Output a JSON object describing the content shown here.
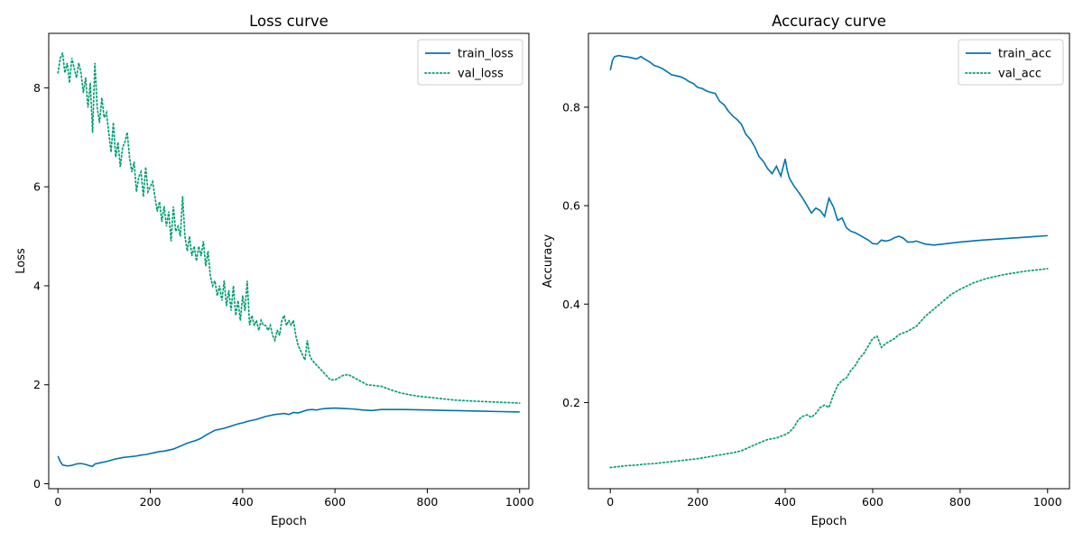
{
  "chart_data": [
    {
      "type": "line",
      "title": "Loss curve",
      "xlabel": "Epoch",
      "ylabel": "Loss",
      "xlim": [
        -20,
        1020
      ],
      "ylim": [
        -0.1,
        9.1
      ],
      "xticks": [
        0,
        200,
        400,
        600,
        800,
        1000
      ],
      "yticks": [
        0,
        2,
        4,
        6,
        8
      ],
      "legend_position": "top-right",
      "series": [
        {
          "name": "train_loss",
          "style": "solid",
          "color": "#0072B2",
          "x": [
            0,
            5,
            10,
            20,
            30,
            40,
            50,
            60,
            70,
            75,
            80,
            90,
            100,
            110,
            120,
            130,
            140,
            150,
            160,
            170,
            180,
            190,
            200,
            210,
            220,
            230,
            240,
            250,
            260,
            270,
            280,
            290,
            300,
            310,
            320,
            330,
            340,
            350,
            360,
            370,
            380,
            390,
            400,
            410,
            420,
            430,
            440,
            450,
            460,
            470,
            480,
            490,
            500,
            510,
            520,
            530,
            540,
            550,
            560,
            570,
            580,
            600,
            620,
            640,
            660,
            680,
            700,
            720,
            750,
            800,
            850,
            900,
            950,
            1000
          ],
          "y": [
            0.56,
            0.45,
            0.38,
            0.36,
            0.37,
            0.4,
            0.41,
            0.39,
            0.36,
            0.35,
            0.4,
            0.42,
            0.44,
            0.46,
            0.49,
            0.51,
            0.53,
            0.54,
            0.55,
            0.56,
            0.58,
            0.59,
            0.61,
            0.63,
            0.65,
            0.66,
            0.68,
            0.7,
            0.74,
            0.78,
            0.82,
            0.85,
            0.88,
            0.92,
            0.98,
            1.03,
            1.08,
            1.1,
            1.12,
            1.15,
            1.18,
            1.21,
            1.23,
            1.26,
            1.28,
            1.3,
            1.33,
            1.36,
            1.38,
            1.4,
            1.41,
            1.42,
            1.4,
            1.44,
            1.43,
            1.46,
            1.49,
            1.5,
            1.49,
            1.51,
            1.52,
            1.53,
            1.52,
            1.51,
            1.49,
            1.48,
            1.5,
            1.5,
            1.5,
            1.49,
            1.48,
            1.47,
            1.46,
            1.45
          ]
        },
        {
          "name": "val_loss",
          "style": "dotted",
          "color": "#009E73",
          "x": [
            0,
            5,
            10,
            15,
            20,
            25,
            30,
            35,
            40,
            45,
            50,
            55,
            60,
            65,
            70,
            75,
            80,
            85,
            90,
            95,
            100,
            105,
            110,
            115,
            120,
            125,
            130,
            135,
            140,
            145,
            150,
            155,
            160,
            165,
            170,
            175,
            180,
            185,
            190,
            195,
            200,
            205,
            210,
            215,
            220,
            225,
            230,
            235,
            240,
            245,
            250,
            255,
            260,
            265,
            270,
            275,
            280,
            285,
            290,
            295,
            300,
            305,
            310,
            315,
            320,
            325,
            330,
            335,
            340,
            345,
            350,
            355,
            360,
            365,
            370,
            375,
            380,
            385,
            390,
            395,
            400,
            405,
            410,
            415,
            420,
            425,
            430,
            435,
            440,
            445,
            450,
            455,
            460,
            465,
            470,
            475,
            480,
            485,
            490,
            495,
            500,
            505,
            510,
            515,
            520,
            525,
            530,
            535,
            540,
            545,
            550,
            560,
            570,
            580,
            590,
            600,
            610,
            620,
            630,
            640,
            650,
            660,
            670,
            680,
            690,
            700,
            720,
            740,
            760,
            780,
            800,
            830,
            860,
            900,
            950,
            1000
          ],
          "y": [
            8.3,
            8.6,
            8.7,
            8.3,
            8.5,
            8.1,
            8.6,
            8.4,
            8.2,
            8.5,
            8.3,
            7.9,
            8.2,
            7.6,
            8.1,
            7.1,
            8.5,
            7.6,
            7.3,
            7.8,
            7.4,
            7.5,
            7.1,
            6.7,
            7.3,
            6.6,
            6.9,
            6.4,
            6.8,
            6.9,
            7.1,
            6.6,
            6.3,
            6.5,
            5.9,
            6.2,
            6.3,
            5.8,
            6.4,
            5.9,
            6.0,
            6.1,
            5.8,
            5.5,
            5.7,
            5.3,
            5.6,
            5.2,
            5.5,
            4.9,
            5.6,
            5.1,
            5.2,
            5.0,
            5.8,
            5.0,
            4.7,
            5.0,
            4.6,
            4.8,
            4.5,
            4.8,
            4.6,
            4.9,
            4.4,
            4.7,
            4.2,
            4.0,
            4.1,
            3.8,
            4.0,
            3.7,
            4.1,
            3.6,
            3.9,
            3.5,
            4.0,
            3.4,
            3.7,
            3.3,
            3.8,
            3.5,
            4.1,
            3.2,
            3.4,
            3.2,
            3.3,
            3.1,
            3.3,
            3.2,
            3.2,
            3.1,
            3.2,
            3.0,
            2.9,
            3.1,
            3.0,
            3.3,
            3.4,
            3.2,
            3.3,
            3.2,
            3.3,
            3.0,
            2.8,
            2.7,
            2.6,
            2.5,
            2.9,
            2.6,
            2.5,
            2.4,
            2.3,
            2.2,
            2.1,
            2.1,
            2.15,
            2.2,
            2.2,
            2.15,
            2.1,
            2.05,
            2.0,
            1.99,
            1.98,
            1.97,
            1.9,
            1.84,
            1.8,
            1.77,
            1.75,
            1.72,
            1.69,
            1.67,
            1.65,
            1.63
          ]
        }
      ]
    },
    {
      "type": "line",
      "title": "Accuracy curve",
      "xlabel": "Epoch",
      "ylabel": "Accuracy",
      "xlim": [
        -50,
        1050
      ],
      "ylim": [
        0.025,
        0.95
      ],
      "xticks": [
        0,
        200,
        400,
        600,
        800,
        1000
      ],
      "yticks": [
        0.2,
        0.4,
        0.6,
        0.8
      ],
      "legend_position": "top-right",
      "series": [
        {
          "name": "train_acc",
          "style": "solid",
          "color": "#0072B2",
          "x": [
            0,
            5,
            10,
            20,
            30,
            40,
            50,
            60,
            70,
            80,
            90,
            100,
            110,
            120,
            130,
            140,
            150,
            160,
            170,
            180,
            190,
            200,
            210,
            220,
            230,
            240,
            250,
            260,
            270,
            280,
            290,
            300,
            310,
            320,
            330,
            340,
            350,
            360,
            370,
            380,
            390,
            400,
            405,
            410,
            420,
            430,
            440,
            450,
            460,
            470,
            480,
            490,
            500,
            510,
            520,
            530,
            540,
            550,
            560,
            570,
            580,
            590,
            600,
            610,
            620,
            630,
            640,
            650,
            660,
            670,
            680,
            690,
            700,
            720,
            740,
            760,
            800,
            850,
            900,
            950,
            1000
          ],
          "y": [
            0.875,
            0.895,
            0.903,
            0.905,
            0.903,
            0.902,
            0.9,
            0.898,
            0.903,
            0.897,
            0.892,
            0.885,
            0.882,
            0.878,
            0.872,
            0.866,
            0.864,
            0.862,
            0.858,
            0.852,
            0.848,
            0.84,
            0.838,
            0.833,
            0.83,
            0.828,
            0.812,
            0.805,
            0.792,
            0.782,
            0.775,
            0.765,
            0.745,
            0.735,
            0.72,
            0.7,
            0.69,
            0.675,
            0.665,
            0.68,
            0.66,
            0.695,
            0.67,
            0.655,
            0.64,
            0.628,
            0.615,
            0.6,
            0.585,
            0.595,
            0.59,
            0.578,
            0.615,
            0.598,
            0.57,
            0.575,
            0.555,
            0.548,
            0.545,
            0.54,
            0.535,
            0.53,
            0.523,
            0.522,
            0.53,
            0.528,
            0.53,
            0.535,
            0.538,
            0.534,
            0.526,
            0.526,
            0.528,
            0.522,
            0.52,
            0.522,
            0.526,
            0.53,
            0.533,
            0.536,
            0.539
          ]
        },
        {
          "name": "val_acc",
          "style": "dotted",
          "color": "#009E73",
          "x": [
            0,
            20,
            40,
            60,
            80,
            100,
            120,
            140,
            160,
            180,
            200,
            220,
            240,
            260,
            280,
            300,
            320,
            340,
            360,
            380,
            400,
            410,
            420,
            430,
            440,
            450,
            460,
            470,
            480,
            490,
            500,
            510,
            520,
            530,
            540,
            550,
            560,
            570,
            580,
            590,
            600,
            610,
            620,
            630,
            640,
            650,
            660,
            680,
            700,
            720,
            740,
            760,
            780,
            800,
            830,
            860,
            900,
            950,
            1000
          ],
          "y": [
            0.068,
            0.07,
            0.072,
            0.073,
            0.075,
            0.076,
            0.078,
            0.08,
            0.082,
            0.084,
            0.086,
            0.089,
            0.092,
            0.095,
            0.098,
            0.102,
            0.11,
            0.118,
            0.125,
            0.128,
            0.135,
            0.14,
            0.15,
            0.165,
            0.172,
            0.175,
            0.17,
            0.178,
            0.19,
            0.195,
            0.19,
            0.215,
            0.235,
            0.245,
            0.25,
            0.265,
            0.275,
            0.29,
            0.3,
            0.315,
            0.33,
            0.335,
            0.312,
            0.32,
            0.325,
            0.33,
            0.338,
            0.345,
            0.355,
            0.375,
            0.39,
            0.405,
            0.42,
            0.43,
            0.443,
            0.452,
            0.46,
            0.467,
            0.472
          ]
        }
      ]
    }
  ]
}
